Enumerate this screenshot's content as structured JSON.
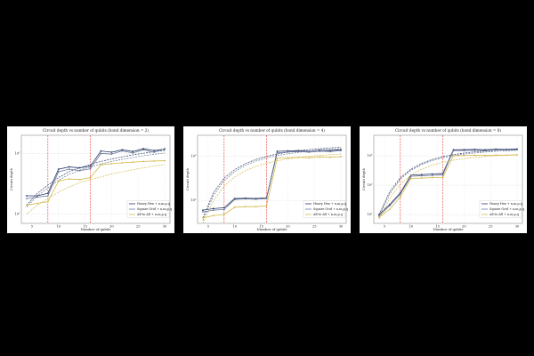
{
  "chart_data": [
    {
      "type": "line",
      "title": "Circuit depth vs number of qubits (bond dimension = 2)",
      "xlabel": "Number of qubits",
      "ylabel": "Circuit depth",
      "x": [
        4,
        6,
        8,
        10,
        12,
        14,
        16,
        18,
        20,
        22,
        24,
        26,
        28,
        30
      ],
      "xlim": [
        3,
        31
      ],
      "xticks": [
        5,
        10,
        15,
        20,
        25,
        30
      ],
      "ylim": [
        7,
        200
      ],
      "yticks": [
        {
          "value": 10,
          "label": "10¹"
        },
        {
          "value": 100,
          "label": "10²"
        }
      ],
      "log_y": true,
      "grid": true,
      "legend": "lower right",
      "vlines": [
        8,
        16
      ],
      "vline_color": "#e0302a",
      "series": [
        {
          "name": "Heavy Hex + n,m,p,q",
          "color": "#2b3a67",
          "values": [
            20,
            20,
            22,
            55,
            60,
            58,
            62,
            110,
            105,
            115,
            108,
            120,
            112,
            118
          ],
          "fit": [
            14,
            22,
            30,
            40,
            50,
            58,
            66,
            74,
            81,
            88,
            95,
            101,
            107,
            113
          ]
        },
        {
          "name": "Square Grid + n,m,p,q",
          "color": "#6b7a99",
          "values": [
            18,
            19,
            20,
            50,
            55,
            52,
            56,
            100,
            98,
            110,
            102,
            115,
            105,
            120
          ],
          "fit": [
            13,
            20,
            27,
            36,
            45,
            53,
            60,
            67,
            74,
            80,
            86,
            92,
            97,
            102
          ]
        },
        {
          "name": "All-to-All + n,m,p,q",
          "color": "#d4b94a",
          "values": [
            14,
            15,
            16,
            35,
            38,
            37,
            40,
            65,
            68,
            70,
            72,
            74,
            75,
            76
          ],
          "fit": [
            10,
            14,
            18,
            23,
            28,
            33,
            37,
            41,
            46,
            50,
            54,
            58,
            62,
            66
          ]
        }
      ]
    },
    {
      "type": "line",
      "title": "Circuit depth vs number of qubits (bond dimension = 4)",
      "xlabel": "Number of qubits",
      "ylabel": "Circuit depth",
      "x": [
        4,
        6,
        8,
        10,
        12,
        14,
        16,
        18,
        20,
        22,
        24,
        26,
        28,
        30
      ],
      "xlim": [
        3,
        31
      ],
      "xticks": [
        5,
        10,
        15,
        20,
        25,
        30
      ],
      "ylim": [
        30,
        3000
      ],
      "yticks": [
        {
          "value": 100,
          "label": "10²"
        },
        {
          "value": 1000,
          "label": "10³"
        }
      ],
      "log_y": true,
      "grid": true,
      "legend": "lower right",
      "vlines": [
        8,
        16
      ],
      "vline_color": "#e0302a",
      "series": [
        {
          "name": "Heavy Hex + n,m,p,q",
          "color": "#2b3a67",
          "values": [
            60,
            65,
            68,
            110,
            112,
            110,
            115,
            1300,
            1320,
            1350,
            1300,
            1380,
            1350,
            1420
          ],
          "fit": [
            40,
            150,
            320,
            500,
            680,
            850,
            1000,
            1130,
            1240,
            1340,
            1420,
            1490,
            1550,
            1600
          ]
        },
        {
          "name": "Square Grid + n,m,p,q",
          "color": "#6b7a99",
          "values": [
            55,
            60,
            62,
            105,
            108,
            106,
            110,
            1200,
            1250,
            1280,
            1240,
            1300,
            1280,
            1350
          ],
          "fit": [
            35,
            130,
            280,
            450,
            620,
            780,
            920,
            1040,
            1140,
            1230,
            1300,
            1370,
            1430,
            1480
          ]
        },
        {
          "name": "All-to-All + n,m,p,q",
          "color": "#d4b94a",
          "values": [
            40,
            45,
            48,
            70,
            72,
            72,
            75,
            900,
            920,
            950,
            930,
            960,
            950,
            980
          ],
          "fit": [
            30,
            100,
            210,
            340,
            470,
            590,
            700,
            790,
            870,
            940,
            1000,
            1050,
            1090,
            1130
          ]
        }
      ]
    },
    {
      "type": "line",
      "title": "Circuit depth vs number of qubits (bond dimension = 8)",
      "xlabel": "Number of qubits",
      "ylabel": "Circuit depth",
      "x": [
        4,
        6,
        8,
        10,
        12,
        14,
        16,
        18,
        20,
        22,
        24,
        26,
        28,
        30
      ],
      "xlim": [
        3,
        31
      ],
      "xticks": [
        5,
        10,
        15,
        20,
        25,
        30
      ],
      "ylim": [
        5,
        5000
      ],
      "yticks": [
        {
          "value": 10,
          "label": "10¹"
        },
        {
          "value": 100,
          "label": "10²"
        },
        {
          "value": 1000,
          "label": "10³"
        }
      ],
      "log_y": true,
      "grid": true,
      "legend": "lower right",
      "vlines": [
        8,
        16
      ],
      "vline_color": "#e0302a",
      "series": [
        {
          "name": "Heavy Hex + n,m,p,q",
          "color": "#2b3a67",
          "values": [
            10,
            22,
            55,
            220,
            230,
            240,
            250,
            1600,
            1620,
            1650,
            1600,
            1680,
            1650,
            1700
          ],
          "fit": [
            10,
            60,
            180,
            350,
            550,
            750,
            940,
            1100,
            1240,
            1360,
            1460,
            1540,
            1610,
            1670
          ]
        },
        {
          "name": "Square Grid + n,m,p,q",
          "color": "#6b7a99",
          "values": [
            9,
            20,
            50,
            200,
            210,
            215,
            225,
            1500,
            1520,
            1550,
            1500,
            1580,
            1560,
            1600
          ],
          "fit": [
            9,
            50,
            160,
            320,
            500,
            690,
            860,
            1010,
            1140,
            1250,
            1340,
            1420,
            1490,
            1540
          ]
        },
        {
          "name": "All-to-All + n,m,p,q",
          "color": "#d4b94a",
          "values": [
            8,
            15,
            40,
            170,
            175,
            180,
            185,
            1000,
            1020,
            1050,
            1030,
            1060,
            1050,
            1080
          ],
          "fit": [
            7,
            35,
            110,
            220,
            350,
            480,
            600,
            710,
            800,
            880,
            950,
            1010,
            1060,
            1100
          ]
        }
      ]
    }
  ]
}
